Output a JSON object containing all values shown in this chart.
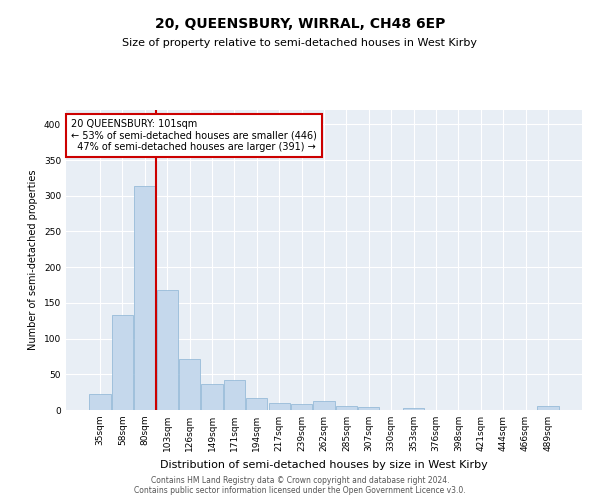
{
  "title": "20, QUEENSBURY, WIRRAL, CH48 6EP",
  "subtitle": "Size of property relative to semi-detached houses in West Kirby",
  "xlabel": "Distribution of semi-detached houses by size in West Kirby",
  "ylabel": "Number of semi-detached properties",
  "categories": [
    "35sqm",
    "58sqm",
    "80sqm",
    "103sqm",
    "126sqm",
    "149sqm",
    "171sqm",
    "194sqm",
    "217sqm",
    "239sqm",
    "262sqm",
    "285sqm",
    "307sqm",
    "330sqm",
    "353sqm",
    "376sqm",
    "398sqm",
    "421sqm",
    "444sqm",
    "466sqm",
    "489sqm"
  ],
  "values": [
    22,
    133,
    313,
    168,
    72,
    36,
    42,
    17,
    10,
    8,
    12,
    6,
    4,
    0,
    3,
    0,
    0,
    0,
    0,
    0,
    5
  ],
  "bar_color": "#c5d8ec",
  "bar_edge_color": "#8ab4d4",
  "property_line_index": 2,
  "property_size": "101sqm",
  "pct_smaller": 53,
  "pct_smaller_count": 446,
  "pct_larger": 47,
  "pct_larger_count": 391,
  "line_color": "#cc0000",
  "annotation_box_color": "#cc0000",
  "ylim": [
    0,
    420
  ],
  "yticks": [
    0,
    50,
    100,
    150,
    200,
    250,
    300,
    350,
    400
  ],
  "footer_line1": "Contains HM Land Registry data © Crown copyright and database right 2024.",
  "footer_line2": "Contains public sector information licensed under the Open Government Licence v3.0.",
  "background_color": "#e8eef5",
  "grid_color": "#ffffff",
  "title_fontsize": 10,
  "subtitle_fontsize": 8,
  "xlabel_fontsize": 8,
  "ylabel_fontsize": 7,
  "tick_fontsize": 6.5,
  "ann_fontsize": 7
}
